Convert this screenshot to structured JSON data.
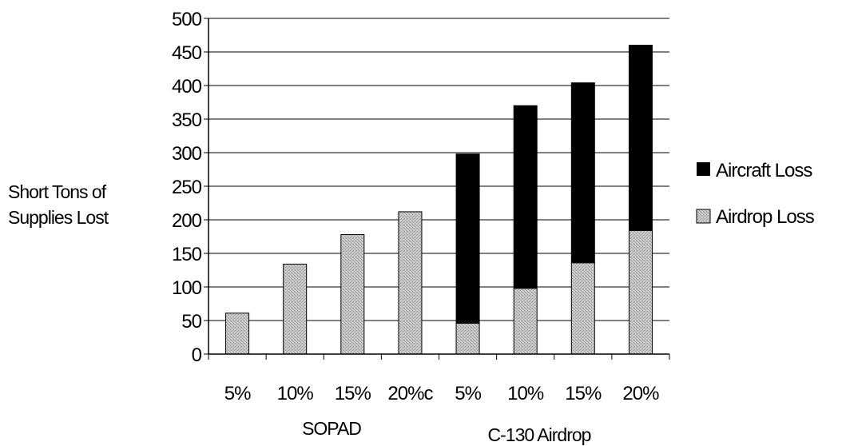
{
  "chart_data": {
    "type": "bar",
    "stacked": true,
    "ylabel_lines": [
      "Short Tons of",
      "Supplies Lost"
    ],
    "xlabel": "",
    "ylim": [
      0,
      500
    ],
    "yticks": [
      0,
      50,
      100,
      150,
      200,
      250,
      300,
      350,
      400,
      450,
      500
    ],
    "grid": true,
    "legend_position": "right",
    "categories": [
      "5%",
      "10%",
      "15%",
      "20%",
      "5%",
      "10%",
      "15%",
      "20%"
    ],
    "category_labels_displayed": [
      "5%",
      "10%",
      "15%",
      "20%с",
      "5%",
      "10%",
      "15%",
      "20%"
    ],
    "groups": [
      {
        "label": "SOPAD",
        "categories": [
          0,
          1,
          2,
          3
        ]
      },
      {
        "label": "C-130 Airdrop",
        "categories": [
          4,
          5,
          6,
          7
        ]
      }
    ],
    "series": [
      {
        "name": "Airdrop Loss",
        "color": "#c4c4c4",
        "values": [
          61,
          134,
          178,
          212,
          46,
          98,
          136,
          184
        ]
      },
      {
        "name": "Aircraft Loss",
        "color": "#000000",
        "values": [
          0,
          0,
          0,
          0,
          252,
          272,
          268,
          276
        ]
      }
    ],
    "legend_order": [
      1,
      0
    ]
  }
}
